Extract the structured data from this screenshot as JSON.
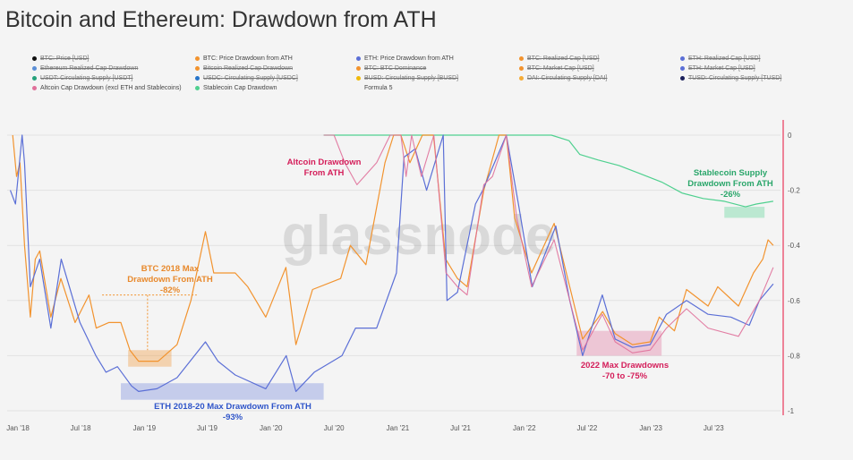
{
  "title": "Bitcoin and Ethereum: Drawdown from ATH",
  "watermark": "glassnode",
  "legend": [
    {
      "label": "BTC: Price [USD]",
      "color": "#111111",
      "off": true
    },
    {
      "label": "BTC: Price Drawdown from ATH",
      "color": "#f2932e",
      "off": false
    },
    {
      "label": "ETH: Price Drawdown from ATH",
      "color": "#5b6fd6",
      "off": false
    },
    {
      "label": "BTC: Realized Cap [USD]",
      "color": "#f2932e",
      "off": true
    },
    {
      "label": "ETH: Realized Cap [USD]",
      "color": "#5b6fd6",
      "off": true
    },
    {
      "label": "Ethereum Realized Cap Drawdown",
      "color": "#5b8fd6",
      "off": true
    },
    {
      "label": "Bitcoin Realized Cap Drawdown",
      "color": "#f2932e",
      "off": true
    },
    {
      "label": "BTC: BTC Dominance",
      "color": "#f2932e",
      "off": true
    },
    {
      "label": "BTC: Market Cap [USD]",
      "color": "#f2932e",
      "off": true
    },
    {
      "label": "ETH: Market Cap [USD]",
      "color": "#5b6fd6",
      "off": true
    },
    {
      "label": "USDT: Circulating Supply [USDT]",
      "color": "#26a17b",
      "off": true
    },
    {
      "label": "USDC: Circulating Supply [USDC]",
      "color": "#2775ca",
      "off": true
    },
    {
      "label": "BUSD: Circulating Supply [BUSD]",
      "color": "#f0b90b",
      "off": true
    },
    {
      "label": "DAI: Circulating Supply [DAI]",
      "color": "#f5ac37",
      "off": true
    },
    {
      "label": "TUSD: Circulating Supply [TUSD]",
      "color": "#1a1f5a",
      "off": true
    },
    {
      "label": "Altcoin Cap Drawdown (excl ETH and Stablecoins)",
      "color": "#e0709a",
      "off": false
    },
    {
      "label": "Stablecoin Cap Drawdown",
      "color": "#4fd08f",
      "off": false
    },
    {
      "label": "Formula 5",
      "color": "",
      "off": false
    }
  ],
  "annotations": {
    "altcoin": [
      "Altcoin Drawdown",
      "From ATH"
    ],
    "btc": [
      "BTC 2018 Max",
      "Drawdown From ATH",
      "-82%"
    ],
    "eth": [
      "ETH 2018-20 Max Drawdown From ATH",
      "-93%"
    ],
    "stable": [
      "Stablecoin Supply",
      "Drawdown From ATH",
      "-26%"
    ],
    "max2022": [
      "2022 Max Drawdowns",
      "-70 to -75%"
    ]
  },
  "colors": {
    "btc": "#f2932e",
    "eth": "#5b6fd6",
    "alt": "#e0709a",
    "stable": "#4fd08f",
    "red_axis": "#e8365a",
    "annot_alt": "#d41e5a",
    "annot_btc": "#e8892c",
    "annot_eth": "#2f55c9",
    "annot_stable": "#2aa66a"
  },
  "chart_data": {
    "type": "line",
    "xlabel": "",
    "ylabel": "",
    "x_ticks": [
      "Jan '18",
      "Jul '18",
      "Jan '19",
      "Jul '19",
      "Jan '20",
      "Jul '20",
      "Jan '21",
      "Jul '21",
      "Jan '22",
      "Jul '22",
      "Jan '23",
      "Jul '23"
    ],
    "y_ticks": [
      "0",
      "-0.2",
      "-0.4",
      "-0.6",
      "-0.8",
      "-1"
    ],
    "ylim": [
      -1,
      0
    ],
    "series": [
      {
        "name": "BTC: Price Drawdown from ATH",
        "key": "btc",
        "points": [
          [
            "2017-12-17",
            0
          ],
          [
            "2017-12-28",
            -0.15
          ],
          [
            "2018-01-07",
            -0.1
          ],
          [
            "2018-01-20",
            -0.4
          ],
          [
            "2018-02-06",
            -0.66
          ],
          [
            "2018-02-20",
            -0.45
          ],
          [
            "2018-03-05",
            -0.42
          ],
          [
            "2018-04-06",
            -0.66
          ],
          [
            "2018-05-05",
            -0.52
          ],
          [
            "2018-06-15",
            -0.68
          ],
          [
            "2018-07-25",
            -0.58
          ],
          [
            "2018-08-15",
            -0.7
          ],
          [
            "2018-09-20",
            -0.68
          ],
          [
            "2018-10-25",
            -0.68
          ],
          [
            "2018-11-20",
            -0.78
          ],
          [
            "2018-12-15",
            -0.82
          ],
          [
            "2019-02-10",
            -0.82
          ],
          [
            "2019-04-05",
            -0.76
          ],
          [
            "2019-05-15",
            -0.6
          ],
          [
            "2019-06-26",
            -0.35
          ],
          [
            "2019-07-20",
            -0.5
          ],
          [
            "2019-09-20",
            -0.5
          ],
          [
            "2019-10-26",
            -0.55
          ],
          [
            "2019-12-17",
            -0.66
          ],
          [
            "2020-02-13",
            -0.48
          ],
          [
            "2020-03-13",
            -0.76
          ],
          [
            "2020-04-30",
            -0.56
          ],
          [
            "2020-07-20",
            -0.52
          ],
          [
            "2020-08-17",
            -0.4
          ],
          [
            "2020-10-01",
            -0.47
          ],
          [
            "2020-11-25",
            -0.1
          ],
          [
            "2020-12-20",
            0
          ],
          [
            "2021-01-10",
            0
          ],
          [
            "2021-02-05",
            -0.1
          ],
          [
            "2021-03-13",
            0
          ],
          [
            "2021-04-14",
            0
          ],
          [
            "2021-05-19",
            -0.45
          ],
          [
            "2021-06-22",
            -0.52
          ],
          [
            "2021-07-20",
            -0.55
          ],
          [
            "2021-09-06",
            -0.2
          ],
          [
            "2021-10-20",
            0
          ],
          [
            "2021-11-10",
            0
          ],
          [
            "2021-12-04",
            -0.3
          ],
          [
            "2022-01-22",
            -0.5
          ],
          [
            "2022-03-28",
            -0.32
          ],
          [
            "2022-05-12",
            -0.55
          ],
          [
            "2022-06-18",
            -0.74
          ],
          [
            "2022-08-15",
            -0.64
          ],
          [
            "2022-09-20",
            -0.72
          ],
          [
            "2022-11-09",
            -0.76
          ],
          [
            "2022-12-30",
            -0.75
          ],
          [
            "2023-01-25",
            -0.66
          ],
          [
            "2023-03-10",
            -0.71
          ],
          [
            "2023-04-14",
            -0.56
          ],
          [
            "2023-06-15",
            -0.62
          ],
          [
            "2023-07-13",
            -0.55
          ],
          [
            "2023-09-11",
            -0.62
          ],
          [
            "2023-10-24",
            -0.5
          ],
          [
            "2023-11-20",
            -0.45
          ],
          [
            "2023-12-05",
            -0.38
          ],
          [
            "2023-12-20",
            -0.4
          ]
        ]
      },
      {
        "name": "ETH: Price Drawdown from ATH",
        "key": "eth",
        "points": [
          [
            "2017-12-10",
            -0.2
          ],
          [
            "2017-12-25",
            -0.25
          ],
          [
            "2018-01-13",
            0
          ],
          [
            "2018-01-20",
            -0.1
          ],
          [
            "2018-02-06",
            -0.55
          ],
          [
            "2018-03-05",
            -0.45
          ],
          [
            "2018-04-06",
            -0.7
          ],
          [
            "2018-05-06",
            -0.45
          ],
          [
            "2018-06-29",
            -0.68
          ],
          [
            "2018-08-14",
            -0.8
          ],
          [
            "2018-09-12",
            -0.86
          ],
          [
            "2018-10-15",
            -0.84
          ],
          [
            "2018-11-25",
            -0.91
          ],
          [
            "2018-12-15",
            -0.93
          ],
          [
            "2019-02-06",
            -0.92
          ],
          [
            "2019-04-05",
            -0.88
          ],
          [
            "2019-06-26",
            -0.75
          ],
          [
            "2019-08-01",
            -0.82
          ],
          [
            "2019-09-20",
            -0.87
          ],
          [
            "2019-12-17",
            -0.92
          ],
          [
            "2020-02-14",
            -0.8
          ],
          [
            "2020-03-13",
            -0.93
          ],
          [
            "2020-05-05",
            -0.86
          ],
          [
            "2020-07-24",
            -0.8
          ],
          [
            "2020-09-01",
            -0.7
          ],
          [
            "2020-11-01",
            -0.7
          ],
          [
            "2020-12-28",
            -0.5
          ],
          [
            "2021-01-19",
            -0.08
          ],
          [
            "2021-02-20",
            -0.05
          ],
          [
            "2021-03-25",
            -0.2
          ],
          [
            "2021-05-12",
            0
          ],
          [
            "2021-05-23",
            -0.6
          ],
          [
            "2021-06-22",
            -0.57
          ],
          [
            "2021-08-13",
            -0.25
          ],
          [
            "2021-09-03",
            -0.2
          ],
          [
            "2021-11-10",
            0
          ],
          [
            "2021-12-15",
            -0.25
          ],
          [
            "2022-01-24",
            -0.55
          ],
          [
            "2022-04-02",
            -0.33
          ],
          [
            "2022-05-12",
            -0.6
          ],
          [
            "2022-06-18",
            -0.8
          ],
          [
            "2022-08-14",
            -0.58
          ],
          [
            "2022-09-20",
            -0.74
          ],
          [
            "2022-11-09",
            -0.77
          ],
          [
            "2022-12-30",
            -0.76
          ],
          [
            "2023-02-15",
            -0.65
          ],
          [
            "2023-04-14",
            -0.6
          ],
          [
            "2023-06-15",
            -0.65
          ],
          [
            "2023-08-20",
            -0.66
          ],
          [
            "2023-10-12",
            -0.69
          ],
          [
            "2023-11-10",
            -0.6
          ],
          [
            "2023-12-20",
            -0.54
          ]
        ]
      },
      {
        "name": "Altcoin Cap Drawdown (excl ETH and Stablecoins)",
        "key": "alt",
        "points": [
          [
            "2020-06-01",
            0
          ],
          [
            "2020-07-01",
            0
          ],
          [
            "2020-08-01",
            -0.1
          ],
          [
            "2020-09-05",
            -0.18
          ],
          [
            "2020-11-01",
            -0.1
          ],
          [
            "2020-12-10",
            0
          ],
          [
            "2021-01-10",
            0
          ],
          [
            "2021-01-25",
            -0.15
          ],
          [
            "2021-02-10",
            0
          ],
          [
            "2021-03-10",
            -0.15
          ],
          [
            "2021-04-15",
            0
          ],
          [
            "2021-05-20",
            -0.5
          ],
          [
            "2021-06-22",
            -0.55
          ],
          [
            "2021-07-20",
            -0.58
          ],
          [
            "2021-09-06",
            -0.18
          ],
          [
            "2021-10-01",
            -0.15
          ],
          [
            "2021-11-10",
            0
          ],
          [
            "2021-12-10",
            -0.3
          ],
          [
            "2022-01-22",
            -0.55
          ],
          [
            "2022-03-28",
            -0.38
          ],
          [
            "2022-05-12",
            -0.6
          ],
          [
            "2022-06-18",
            -0.78
          ],
          [
            "2022-08-14",
            -0.65
          ],
          [
            "2022-09-20",
            -0.75
          ],
          [
            "2022-11-09",
            -0.79
          ],
          [
            "2022-12-30",
            -0.78
          ],
          [
            "2023-02-15",
            -0.7
          ],
          [
            "2023-04-14",
            -0.63
          ],
          [
            "2023-06-15",
            -0.7
          ],
          [
            "2023-09-11",
            -0.73
          ],
          [
            "2023-11-10",
            -0.6
          ],
          [
            "2023-12-20",
            -0.48
          ]
        ]
      },
      {
        "name": "Stablecoin Cap Drawdown",
        "key": "stable",
        "points": [
          [
            "2020-06-01",
            0
          ],
          [
            "2022-03-20",
            0
          ],
          [
            "2022-05-10",
            -0.02
          ],
          [
            "2022-06-10",
            -0.07
          ],
          [
            "2022-08-01",
            -0.09
          ],
          [
            "2022-10-01",
            -0.11
          ],
          [
            "2022-12-01",
            -0.14
          ],
          [
            "2023-02-01",
            -0.17
          ],
          [
            "2023-04-01",
            -0.21
          ],
          [
            "2023-06-01",
            -0.23
          ],
          [
            "2023-08-01",
            -0.24
          ],
          [
            "2023-10-01",
            -0.26
          ],
          [
            "2023-11-01",
            -0.25
          ],
          [
            "2023-12-20",
            -0.24
          ]
        ]
      }
    ]
  }
}
